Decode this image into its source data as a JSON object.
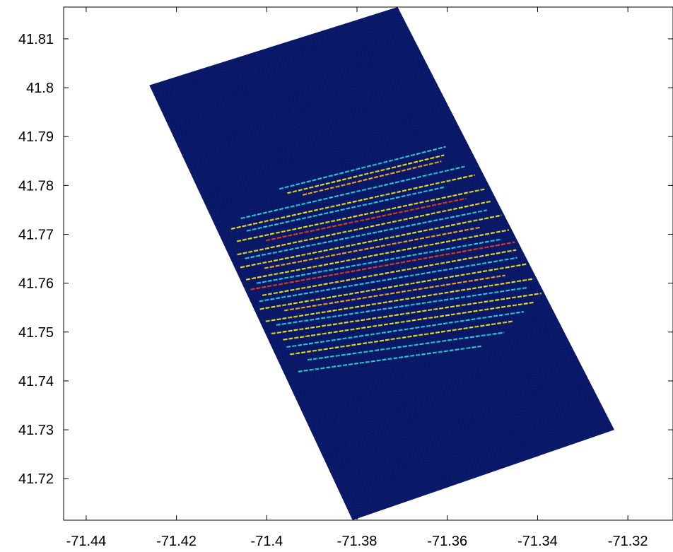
{
  "chart_data": {
    "type": "heatmap",
    "title": "",
    "xlabel": "",
    "ylabel": "",
    "xlim": [
      -71.445,
      -71.31
    ],
    "ylim": [
      41.7115,
      41.8165
    ],
    "x_ticks": [
      "-71.44",
      "-71.42",
      "-71.4",
      "-71.38",
      "-71.36",
      "-71.34",
      "-71.32"
    ],
    "y_ticks": [
      "41.72",
      "41.73",
      "41.74",
      "41.75",
      "41.76",
      "41.77",
      "41.78",
      "41.79",
      "41.8",
      "41.81"
    ],
    "grid": false,
    "colormap": "jet",
    "background_color": "#0a1a6e",
    "mesh_line_color": "#000000",
    "domain_corners": [
      {
        "x": -71.426,
        "y": 41.8005
      },
      {
        "x": -71.371,
        "y": 41.8165
      },
      {
        "x": -71.323,
        "y": 41.73
      },
      {
        "x": -71.381,
        "y": 41.7115
      }
    ],
    "bands": [
      {
        "y_left": 41.7755,
        "y_right": 41.789,
        "u0": 0.28,
        "u1": 0.92,
        "color": "#2ec8d8"
      },
      {
        "y_left": 41.7745,
        "y_right": 41.7875,
        "u0": 0.3,
        "u1": 0.9,
        "color": "#e8e020"
      },
      {
        "y_left": 41.7735,
        "y_right": 41.7865,
        "u0": 0.35,
        "u1": 0.88,
        "color": "#f5a623"
      },
      {
        "y_left": 41.772,
        "y_right": 41.7845,
        "u0": 0.1,
        "u1": 0.95,
        "color": "#2ec8d8"
      },
      {
        "y_left": 41.7705,
        "y_right": 41.7825,
        "u0": 0.05,
        "u1": 0.97,
        "color": "#e8e020"
      },
      {
        "y_left": 41.7695,
        "y_right": 41.7815,
        "u0": 0.1,
        "u1": 0.85,
        "color": "#2ec8d8"
      },
      {
        "y_left": 41.768,
        "y_right": 41.7795,
        "u0": 0.05,
        "u1": 0.98,
        "color": "#e8e020"
      },
      {
        "y_left": 41.767,
        "y_right": 41.7785,
        "u0": 0.15,
        "u1": 0.9,
        "color": "#e0401a"
      },
      {
        "y_left": 41.7655,
        "y_right": 41.777,
        "u0": 0.03,
        "u1": 0.98,
        "color": "#e8e020"
      },
      {
        "y_left": 41.7645,
        "y_right": 41.7755,
        "u0": 0.05,
        "u1": 0.95,
        "color": "#2ec8d8"
      },
      {
        "y_left": 41.763,
        "y_right": 41.774,
        "u0": 0.02,
        "u1": 0.99,
        "color": "#e8e020"
      },
      {
        "y_left": 41.762,
        "y_right": 41.7725,
        "u0": 0.1,
        "u1": 0.9,
        "color": "#f5a623"
      },
      {
        "y_left": 41.7605,
        "y_right": 41.771,
        "u0": 0.02,
        "u1": 0.99,
        "color": "#e8e020"
      },
      {
        "y_left": 41.7595,
        "y_right": 41.7695,
        "u0": 0.05,
        "u1": 0.95,
        "color": "#2ec8d8"
      },
      {
        "y_left": 41.7585,
        "y_right": 41.7685,
        "u0": 0.02,
        "u1": 0.99,
        "color": "#e0401a"
      },
      {
        "y_left": 41.757,
        "y_right": 41.767,
        "u0": 0.05,
        "u1": 0.98,
        "color": "#e8e020"
      },
      {
        "y_left": 41.756,
        "y_right": 41.7655,
        "u0": 0.03,
        "u1": 0.97,
        "color": "#2ec8d8"
      },
      {
        "y_left": 41.7545,
        "y_right": 41.764,
        "u0": 0.02,
        "u1": 0.99,
        "color": "#e8e020"
      },
      {
        "y_left": 41.7535,
        "y_right": 41.7625,
        "u0": 0.1,
        "u1": 0.9,
        "color": "#f5a623"
      },
      {
        "y_left": 41.752,
        "y_right": 41.761,
        "u0": 0.02,
        "u1": 0.99,
        "color": "#e8e020"
      },
      {
        "y_left": 41.751,
        "y_right": 41.7595,
        "u0": 0.05,
        "u1": 0.95,
        "color": "#2ec8d8"
      },
      {
        "y_left": 41.7495,
        "y_right": 41.758,
        "u0": 0.02,
        "u1": 0.99,
        "color": "#e8e020"
      },
      {
        "y_left": 41.748,
        "y_right": 41.7565,
        "u0": 0.05,
        "u1": 0.95,
        "color": "#e8e020"
      },
      {
        "y_left": 41.7465,
        "y_right": 41.755,
        "u0": 0.05,
        "u1": 0.9,
        "color": "#2ec8d8"
      },
      {
        "y_left": 41.745,
        "y_right": 41.7535,
        "u0": 0.05,
        "u1": 0.85,
        "color": "#e8e020"
      },
      {
        "y_left": 41.7435,
        "y_right": 41.7515,
        "u0": 0.1,
        "u1": 0.8,
        "color": "#2ec8d8"
      },
      {
        "y_left": 41.7415,
        "y_right": 41.7495,
        "u0": 0.05,
        "u1": 0.7,
        "color": "#2ec8d8"
      }
    ]
  }
}
